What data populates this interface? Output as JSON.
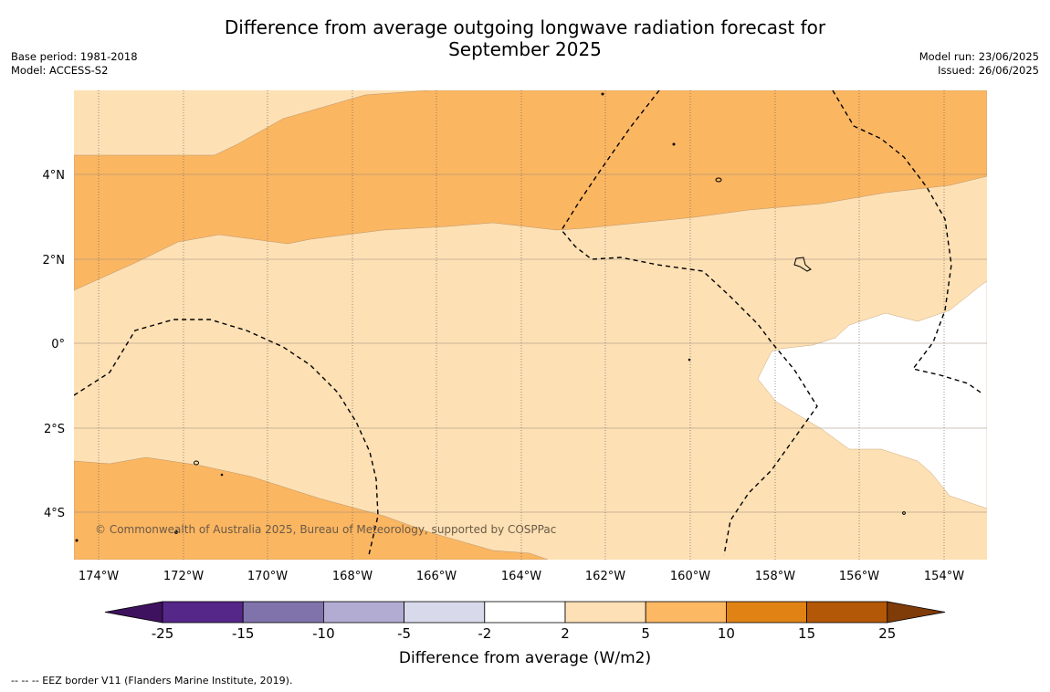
{
  "title": {
    "line1": "Difference from average outgoing longwave radiation forecast for",
    "line2": "September 2025"
  },
  "meta_left": {
    "base_period": "Base period: 1981-2018",
    "model": "Model: ACCESS-S2"
  },
  "meta_right": {
    "model_run": "Model run: 23/06/2025",
    "issued": "Issued: 26/06/2025"
  },
  "map": {
    "lon_labels": [
      "174°W",
      "172°W",
      "170°W",
      "168°W",
      "166°W",
      "164°W",
      "162°W",
      "160°W",
      "158°W",
      "156°W",
      "154°W"
    ],
    "lat_labels": [
      "4°N",
      "2°N",
      "0°",
      "2°S",
      "4°S"
    ],
    "copyright": "© Commonwealth of Australia 2025, Bureau of Meteorology, supported by COSPPac",
    "fill_colors": {
      "pale_orange": "#fde0b4",
      "orange": "#fbb662",
      "white": "#ffffff"
    }
  },
  "colorbar": {
    "label": "Difference from average (W/m2)",
    "ticks": [
      "-25",
      "-15",
      "-10",
      "-5",
      "-2",
      "2",
      "5",
      "10",
      "15",
      "25"
    ],
    "colors": [
      "#3f1260",
      "#542788",
      "#8073ac",
      "#b2abd2",
      "#d8daeb",
      "#ffffff",
      "#fee0b6",
      "#fdb863",
      "#e08214",
      "#b35806",
      "#7f3b08"
    ]
  },
  "footer": {
    "legend_text": "-- -- -- EEZ border V11 (Flanders Marine Institute, 2019)."
  }
}
